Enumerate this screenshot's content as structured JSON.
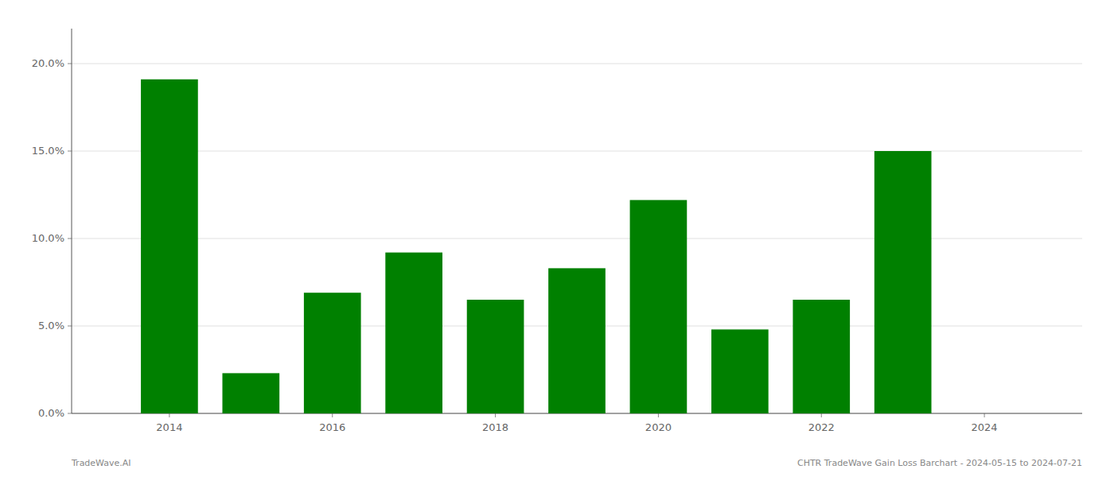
{
  "chart_data": {
    "type": "bar",
    "x": [
      2014,
      2015,
      2016,
      2017,
      2018,
      2019,
      2020,
      2021,
      2022,
      2023
    ],
    "values": [
      0.191,
      0.023,
      0.069,
      0.092,
      0.065,
      0.083,
      0.122,
      0.048,
      0.065,
      0.15
    ],
    "color": "#008000",
    "xlim": [
      2012.8,
      2025.2
    ],
    "xticks": [
      2014,
      2016,
      2018,
      2020,
      2022,
      2024
    ],
    "ylim": [
      0.0,
      0.22
    ],
    "yticks": [
      {
        "value": 0.0,
        "label": "0.0%"
      },
      {
        "value": 0.05,
        "label": "5.0%"
      },
      {
        "value": 0.1,
        "label": "10.0%"
      },
      {
        "value": 0.15,
        "label": "15.0%"
      },
      {
        "value": 0.2,
        "label": "20.0%"
      }
    ],
    "grid": true,
    "annotations": [
      "TradeWave.AI",
      "CHTR TradeWave Gain Loss Barchart - 2024-05-15 to 2024-07-21"
    ]
  }
}
